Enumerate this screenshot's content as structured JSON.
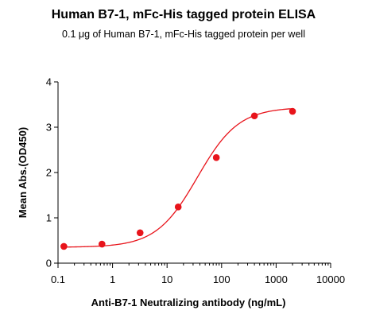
{
  "chart_data": {
    "type": "scatter",
    "title": "Human B7-1, mFc-His tagged protein ELISA",
    "subtitle": "0.1 μg of Human B7-1, mFc-His tagged protein per well",
    "xlabel": "Anti-B7-1 Neutralizing antibody (ng/mL)",
    "ylabel": "Mean Abs.(OD450)",
    "xscale": "log",
    "xlim": [
      0.1,
      10000
    ],
    "ylim": [
      0,
      4
    ],
    "x_ticks": [
      0.1,
      1,
      10,
      100,
      1000,
      10000
    ],
    "x_tick_labels": [
      "0.1",
      "1",
      "10",
      "100",
      "1000",
      "10000"
    ],
    "y_ticks": [
      0,
      1,
      2,
      3,
      4
    ],
    "y_tick_labels": [
      "0",
      "1",
      "2",
      "3",
      "4"
    ],
    "grid": false,
    "series": [
      {
        "x": [
          0.128,
          0.64,
          3.2,
          16,
          80,
          400,
          2000
        ],
        "y": [
          0.37,
          0.42,
          0.67,
          1.24,
          2.33,
          3.25,
          3.35
        ],
        "color": "#e8141b",
        "fit": "4PL"
      }
    ]
  }
}
